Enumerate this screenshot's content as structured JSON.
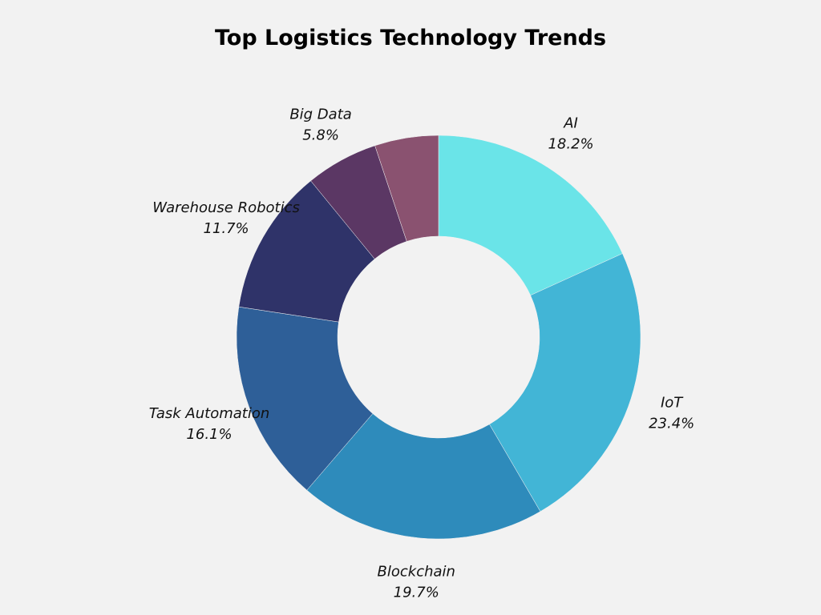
{
  "chart_data": {
    "type": "pie",
    "donut": true,
    "title": "Top Logistics Technology Trends",
    "slices": [
      {
        "label": "AI",
        "value": 18.2,
        "display": "18.2%",
        "color": "#6ae4e8"
      },
      {
        "label": "IoT",
        "value": 23.4,
        "display": "23.4%",
        "color": "#42b5d6"
      },
      {
        "label": "Blockchain",
        "value": 19.7,
        "display": "19.7%",
        "color": "#2e8bbb"
      },
      {
        "label": "Task Automation",
        "value": 16.1,
        "display": "16.1%",
        "color": "#2e5f98"
      },
      {
        "label": "Warehouse Robotics",
        "value": 11.7,
        "display": "11.7%",
        "color": "#2f3369"
      },
      {
        "label": "Big Data",
        "value": 5.8,
        "display": "5.8%",
        "color": "#5b3764"
      },
      {
        "label": "",
        "value": 5.1,
        "display": "",
        "color": "#8a5270"
      }
    ]
  }
}
